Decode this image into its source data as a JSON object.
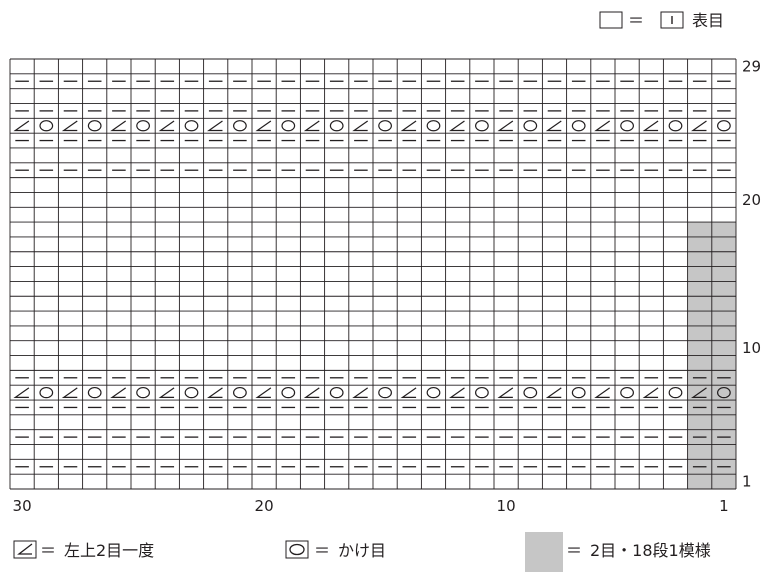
{
  "grid": {
    "stitches": 30,
    "rows": 29,
    "col_number_labels": [
      {
        "stitch": 30,
        "label": "30"
      },
      {
        "stitch": 20,
        "label": "20"
      },
      {
        "stitch": 10,
        "label": "10"
      },
      {
        "stitch": 1,
        "label": "1"
      }
    ],
    "row_number_labels": [
      {
        "row": 29,
        "label": "29"
      },
      {
        "row": 20,
        "label": "20"
      },
      {
        "row": 10,
        "label": "10"
      },
      {
        "row": 1,
        "label": "1"
      }
    ],
    "purl_rows": [
      2,
      4,
      6,
      8,
      22,
      24,
      26,
      28
    ],
    "pattern_rows": [
      7,
      25
    ],
    "pattern_sequence": [
      "yo",
      "k2tog"
    ],
    "repeat_highlight": {
      "stitch_from": 1,
      "stitch_to": 2,
      "row_from": 1,
      "row_to": 18,
      "color": "#c6c6c6"
    }
  },
  "legend": {
    "knit": {
      "eq": "＝",
      "label": "表目"
    },
    "k2tog": {
      "eq": "＝",
      "label": "左上2目一度"
    },
    "yo": {
      "eq": "＝",
      "label": "かけ目"
    },
    "repeat": {
      "eq": "＝",
      "label": "2目・18段1模様",
      "color": "#c6c6c6"
    }
  },
  "colors": {
    "ink": "#231f20",
    "shade": "#c6c6c6"
  }
}
